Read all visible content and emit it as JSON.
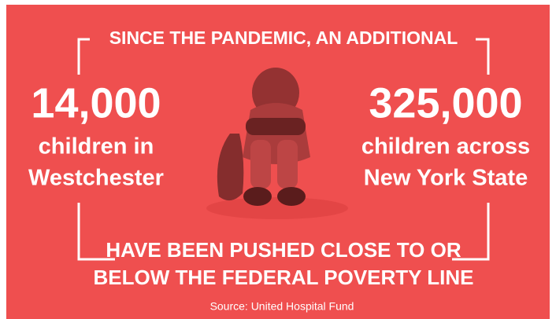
{
  "header": "SINCE THE PANDEMIC, AN ADDITIONAL",
  "left": {
    "number": "14,000",
    "label_lines": [
      "children in",
      "Westchester"
    ]
  },
  "right": {
    "number": "325,000",
    "label_lines": [
      "children across",
      "New York State"
    ]
  },
  "footer_lines": [
    "HAVE BEEN PUSHED CLOSE TO OR",
    "BELOW THE FEDERAL POVERTY LINE"
  ],
  "source": "Source: United Hospital Fund"
}
